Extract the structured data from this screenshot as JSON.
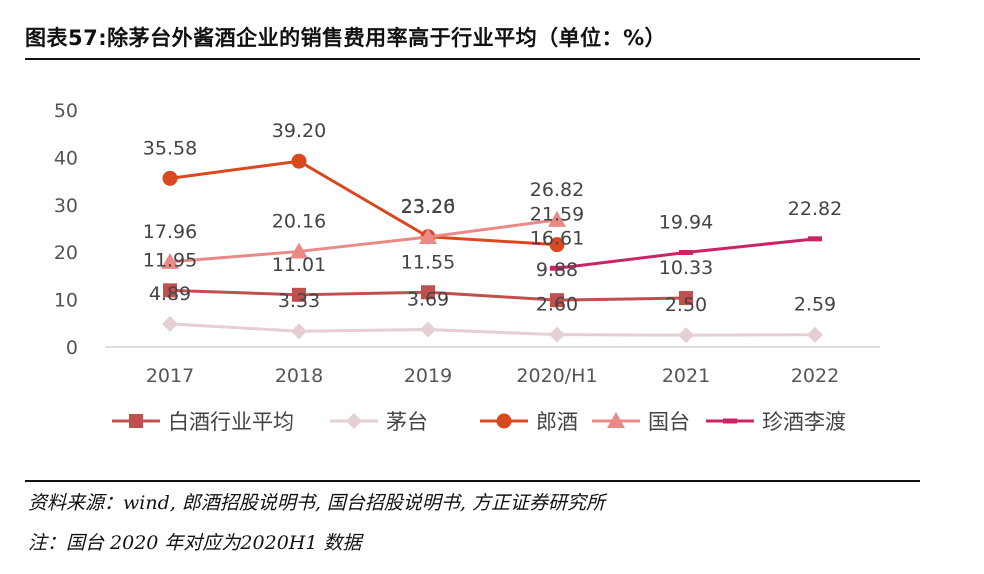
{
  "title": "图表57:除茅台外酱酒企业的销售费用率高于行业平均（单位：%）",
  "source_text": "资料来源：wind, 郎酒招股说明书, 国台招股说明书, 方正证券研究所",
  "remark_text": "注：国台 2020 年对应为2020H1 数据",
  "chart_data": {
    "type": "line",
    "categories": [
      "2017",
      "2018",
      "2019",
      "2020/H1",
      "2021",
      "2022"
    ],
    "ylim": [
      0,
      50
    ],
    "yticks": [
      0,
      10,
      20,
      30,
      40,
      50
    ],
    "xlabel": "",
    "ylabel": "",
    "legend_position": "bottom",
    "series": [
      {
        "name": "白酒行业平均",
        "color": "#c0504d",
        "marker": "square",
        "values": [
          11.95,
          11.01,
          11.55,
          9.88,
          10.33,
          null
        ],
        "labels": [
          "11.95",
          "11.01",
          "11.55",
          "9.88",
          "10.33",
          null
        ]
      },
      {
        "name": "茅台",
        "color": "#e6cfd2",
        "marker": "diamond",
        "values": [
          4.89,
          3.33,
          3.69,
          2.6,
          2.5,
          2.59
        ],
        "labels": [
          "4.89",
          "3.33",
          "3.69",
          "2.60",
          "2.50",
          "2.59"
        ]
      },
      {
        "name": "郎酒",
        "color": "#d9481f",
        "marker": "circle",
        "values": [
          35.58,
          39.2,
          23.26,
          21.59,
          null,
          null
        ],
        "labels": [
          "35.58",
          "39.20",
          "23.26",
          "21.59",
          null,
          null
        ]
      },
      {
        "name": "国台",
        "color": "#e98a86",
        "marker": "triangle",
        "values": [
          17.96,
          20.16,
          23.2,
          26.82,
          null,
          null
        ],
        "labels": [
          "17.96",
          "20.16",
          "23.20",
          "26.82",
          null,
          null
        ]
      },
      {
        "name": "珍酒李渡",
        "color": "#cc2266",
        "marker": "dash",
        "values": [
          null,
          null,
          null,
          16.61,
          19.94,
          22.82
        ],
        "labels": [
          null,
          null,
          null,
          "16.61",
          "19.94",
          "22.82"
        ]
      }
    ]
  }
}
